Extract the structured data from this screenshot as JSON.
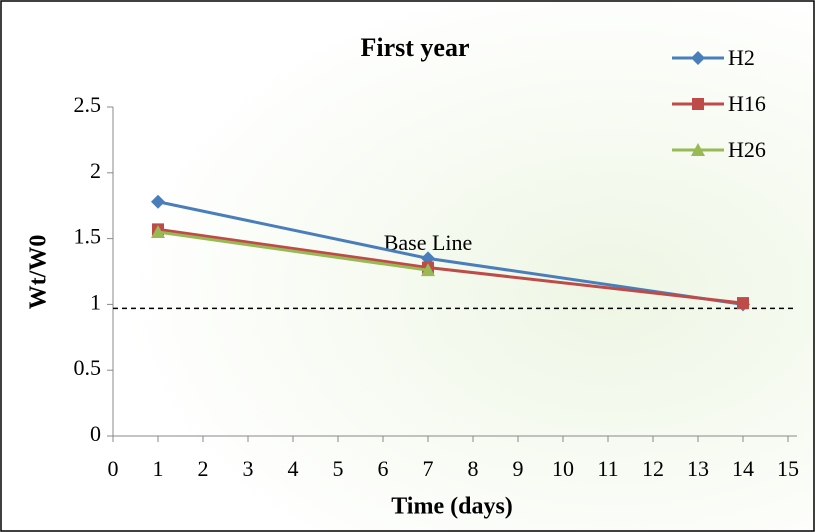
{
  "chart_data": {
    "type": "line",
    "title": "First year",
    "x_label": "Time (days)",
    "y_label": "Wt/W0",
    "x": [
      1,
      7,
      14
    ],
    "series": [
      {
        "name": "H2",
        "color": "#4a7ebb",
        "marker": "diamond",
        "values": [
          1.78,
          1.35,
          1.0
        ]
      },
      {
        "name": "H16",
        "color": "#be4b48",
        "marker": "square",
        "values": [
          1.57,
          1.28,
          1.01
        ]
      },
      {
        "name": "H26",
        "color": "#98b954",
        "marker": "triangle",
        "values": [
          1.55,
          1.26,
          null
        ]
      }
    ],
    "baseline": {
      "value": 0.97,
      "label": "Base Line"
    },
    "xlim": [
      0,
      15
    ],
    "xticks": [
      0,
      1,
      2,
      3,
      4,
      5,
      6,
      7,
      8,
      9,
      10,
      11,
      12,
      13,
      14,
      15
    ],
    "ylim": [
      0,
      2.5
    ],
    "yticks": [
      0,
      0.5,
      1,
      1.5,
      2,
      2.5
    ],
    "legend": "top-right",
    "grid": false
  }
}
